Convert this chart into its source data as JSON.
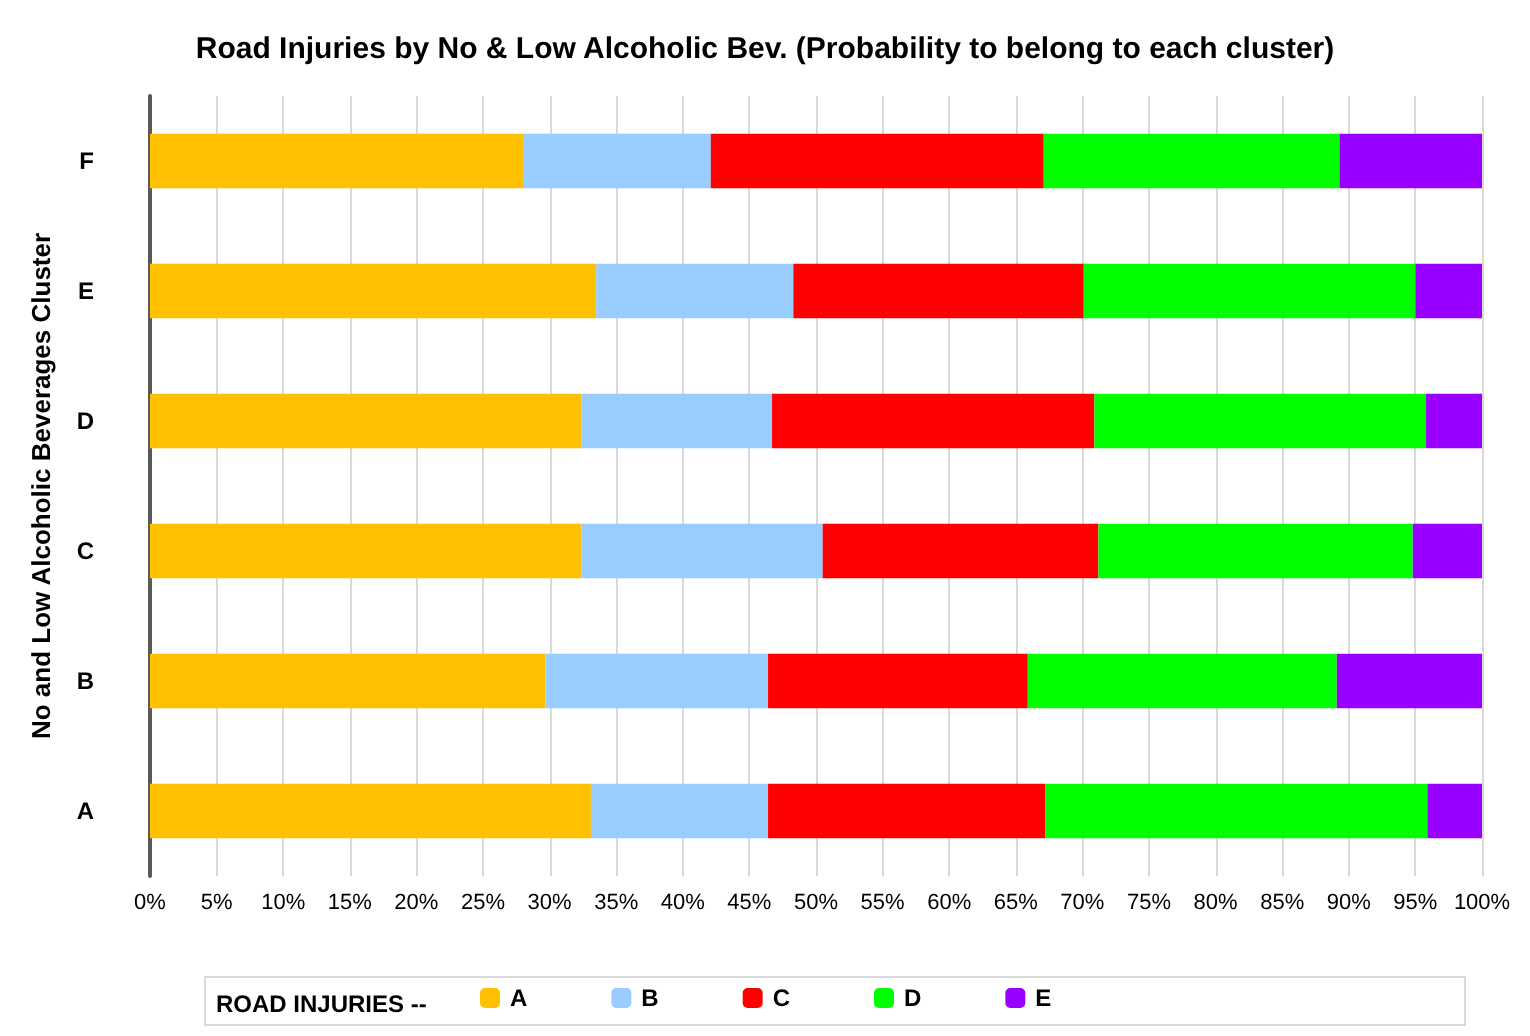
{
  "chart_data": {
    "type": "bar",
    "orientation": "horizontal",
    "stacked": true,
    "title": "Road Injuries by No & Low Alcoholic Bev. (Probability to belong to each cluster)",
    "ylabel": "No and Low Alcoholic Beverages Cluster",
    "legend_title": "ROAD INJURIES --",
    "categories": [
      "F",
      "E",
      "D",
      "C",
      "B",
      "A"
    ],
    "series": [
      {
        "name": "A",
        "color": "#ffc000",
        "values": [
          28.0,
          33.5,
          32.4,
          32.4,
          29.7,
          33.1
        ]
      },
      {
        "name": "B",
        "color": "#99ccff",
        "values": [
          14.1,
          14.8,
          14.3,
          18.1,
          16.7,
          13.3
        ]
      },
      {
        "name": "C",
        "color": "#ff0000",
        "values": [
          25.0,
          21.8,
          24.2,
          20.7,
          19.5,
          20.8
        ]
      },
      {
        "name": "D",
        "color": "#00ff00",
        "values": [
          22.2,
          24.9,
          24.9,
          23.6,
          23.2,
          28.7
        ]
      },
      {
        "name": "E",
        "color": "#9900ff",
        "values": [
          10.7,
          5.0,
          4.2,
          5.2,
          10.9,
          4.1
        ]
      }
    ],
    "xlim": [
      0,
      100
    ],
    "xticks": [
      {
        "value": 0,
        "label": "0%"
      },
      {
        "value": 5,
        "label": "5%"
      },
      {
        "value": 10,
        "label": "10%"
      },
      {
        "value": 15,
        "label": "15%"
      },
      {
        "value": 20,
        "label": "20%"
      },
      {
        "value": 25,
        "label": "25%"
      },
      {
        "value": 30,
        "label": "30%"
      },
      {
        "value": 35,
        "label": "35%"
      },
      {
        "value": 40,
        "label": "40%"
      },
      {
        "value": 45,
        "label": "45%"
      },
      {
        "value": 50,
        "label": "50%"
      },
      {
        "value": 55,
        "label": "55%"
      },
      {
        "value": 60,
        "label": "60%"
      },
      {
        "value": 65,
        "label": "65%"
      },
      {
        "value": 70,
        "label": "70%"
      },
      {
        "value": 75,
        "label": "75%"
      },
      {
        "value": 80,
        "label": "80%"
      },
      {
        "value": 85,
        "label": "85%"
      },
      {
        "value": 90,
        "label": "90%"
      },
      {
        "value": 95,
        "label": "95%"
      },
      {
        "value": 100,
        "label": "100%"
      }
    ],
    "grid": "x",
    "legend": "bottom"
  }
}
